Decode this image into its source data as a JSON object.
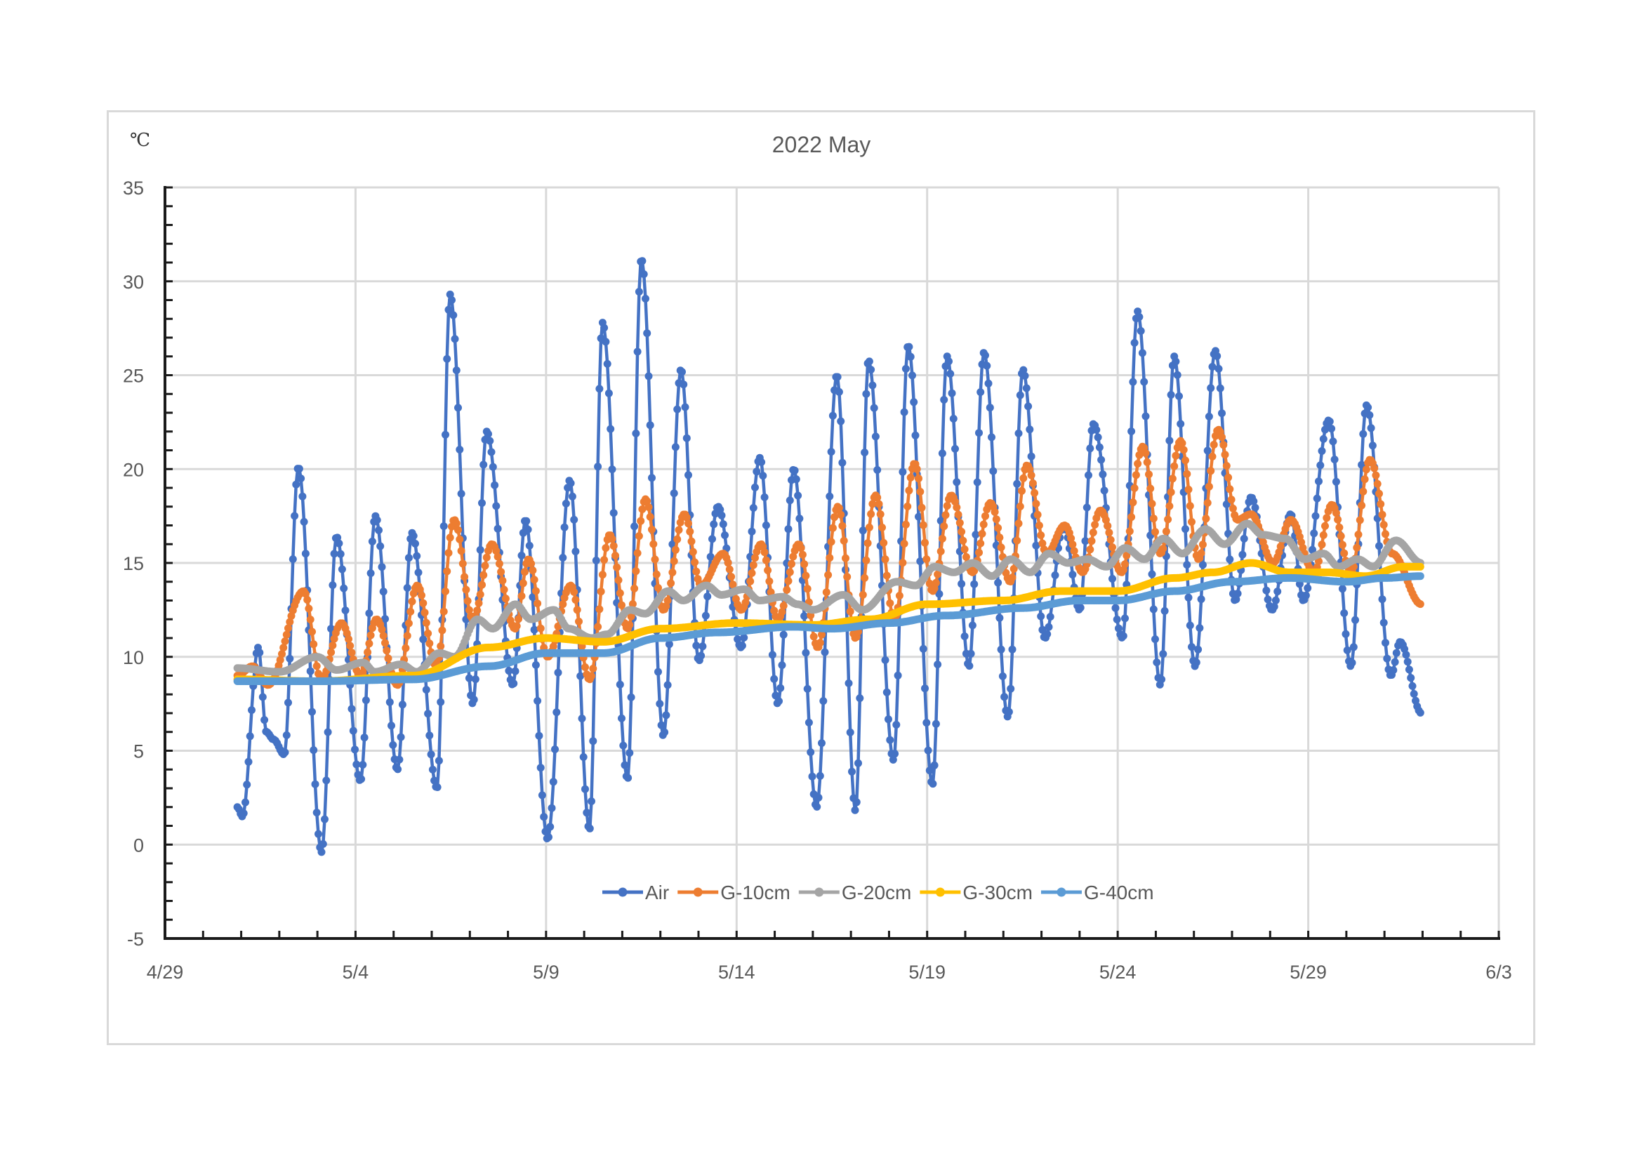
{
  "chart_data": {
    "type": "line",
    "title": "2022 May",
    "ylabel": "℃",
    "xlabel": "",
    "x_units": "days since 4/29",
    "xlim": [
      0,
      35
    ],
    "ylim": [
      -5,
      35
    ],
    "grid": true,
    "legend_position": "bottom-center inside",
    "x_tick_labels": [
      {
        "day": 0,
        "label": "4/29"
      },
      {
        "day": 5,
        "label": "5/4"
      },
      {
        "day": 10,
        "label": "5/9"
      },
      {
        "day": 15,
        "label": "5/14"
      },
      {
        "day": 20,
        "label": "5/19"
      },
      {
        "day": 25,
        "label": "5/24"
      },
      {
        "day": 30,
        "label": "5/29"
      },
      {
        "day": 35,
        "label": "6/3"
      }
    ],
    "y_tick_labels": [
      "35",
      "30",
      "25",
      "20",
      "15",
      "10",
      "5",
      "0",
      "-5"
    ],
    "y_ticks": [
      35,
      30,
      25,
      20,
      15,
      10,
      5,
      0,
      -5
    ],
    "sampling_hours": 1,
    "series": [
      {
        "name": "Air",
        "color": "#4472C4",
        "key_points": [
          [
            1.9,
            2.0
          ],
          [
            2.03,
            1.5
          ],
          [
            2.45,
            10.5
          ],
          [
            2.66,
            6.0
          ],
          [
            2.85,
            5.6
          ],
          [
            3.13,
            4.8
          ],
          [
            3.5,
            20.1
          ],
          [
            4.11,
            -0.4
          ],
          [
            4.5,
            16.4
          ],
          [
            5.13,
            3.4
          ],
          [
            5.52,
            17.5
          ],
          [
            6.1,
            4.0
          ],
          [
            6.48,
            16.6
          ],
          [
            7.14,
            3.0
          ],
          [
            7.48,
            29.3
          ],
          [
            8.08,
            7.5
          ],
          [
            8.44,
            22.0
          ],
          [
            9.13,
            8.5
          ],
          [
            9.46,
            17.3
          ],
          [
            10.04,
            0.3
          ],
          [
            10.62,
            19.4
          ],
          [
            11.14,
            0.8
          ],
          [
            11.48,
            27.8
          ],
          [
            12.14,
            3.5
          ],
          [
            12.5,
            31.2
          ],
          [
            13.08,
            5.8
          ],
          [
            13.54,
            25.3
          ],
          [
            14.01,
            9.8
          ],
          [
            14.51,
            18.0
          ],
          [
            15.12,
            10.5
          ],
          [
            15.61,
            20.6
          ],
          [
            16.08,
            7.5
          ],
          [
            16.5,
            20.0
          ],
          [
            17.1,
            2.0
          ],
          [
            17.63,
            25.0
          ],
          [
            18.12,
            1.8
          ],
          [
            18.46,
            25.8
          ],
          [
            19.12,
            4.5
          ],
          [
            19.5,
            26.6
          ],
          [
            20.14,
            3.2
          ],
          [
            20.52,
            26.0
          ],
          [
            21.1,
            9.5
          ],
          [
            21.49,
            26.2
          ],
          [
            22.12,
            6.8
          ],
          [
            22.51,
            25.3
          ],
          [
            23.09,
            11.0
          ],
          [
            23.59,
            17.0
          ],
          [
            24.0,
            12.5
          ],
          [
            24.36,
            22.4
          ],
          [
            25.13,
            11.0
          ],
          [
            25.52,
            28.4
          ],
          [
            26.12,
            8.5
          ],
          [
            26.48,
            26.0
          ],
          [
            27.03,
            9.5
          ],
          [
            27.56,
            26.3
          ],
          [
            28.08,
            13.0
          ],
          [
            28.5,
            18.5
          ],
          [
            29.05,
            12.5
          ],
          [
            29.54,
            17.6
          ],
          [
            29.87,
            13.0
          ],
          [
            30.54,
            22.6
          ],
          [
            31.12,
            9.5
          ],
          [
            31.53,
            23.4
          ],
          [
            32.17,
            9.0
          ],
          [
            32.41,
            10.8
          ],
          [
            32.97,
            7.0
          ]
        ]
      },
      {
        "name": "G-10cm",
        "color": "#ED7D31",
        "key_points": [
          [
            1.9,
            9.0
          ],
          [
            2.3,
            9.5
          ],
          [
            2.7,
            8.5
          ],
          [
            3.64,
            13.5
          ],
          [
            4.1,
            8.8
          ],
          [
            4.63,
            11.8
          ],
          [
            5.13,
            9.0
          ],
          [
            5.55,
            12.0
          ],
          [
            6.1,
            8.5
          ],
          [
            6.62,
            13.8
          ],
          [
            7.12,
            9.5
          ],
          [
            7.59,
            17.3
          ],
          [
            8.08,
            12.0
          ],
          [
            8.58,
            16.0
          ],
          [
            9.19,
            11.5
          ],
          [
            9.54,
            15.2
          ],
          [
            10.04,
            10.0
          ],
          [
            10.65,
            13.8
          ],
          [
            11.14,
            8.8
          ],
          [
            11.67,
            16.5
          ],
          [
            12.14,
            11.5
          ],
          [
            12.61,
            18.4
          ],
          [
            13.08,
            12.5
          ],
          [
            13.63,
            17.6
          ],
          [
            14.07,
            13.8
          ],
          [
            14.65,
            15.5
          ],
          [
            15.12,
            12.5
          ],
          [
            15.64,
            16.0
          ],
          [
            16.08,
            12.0
          ],
          [
            16.63,
            16.0
          ],
          [
            17.13,
            10.5
          ],
          [
            17.66,
            18.0
          ],
          [
            18.12,
            11.0
          ],
          [
            18.65,
            18.6
          ],
          [
            19.14,
            12.0
          ],
          [
            19.67,
            20.3
          ],
          [
            20.14,
            13.5
          ],
          [
            20.63,
            18.6
          ],
          [
            21.19,
            14.5
          ],
          [
            21.66,
            18.2
          ],
          [
            22.18,
            14.0
          ],
          [
            22.62,
            20.2
          ],
          [
            23.14,
            15.5
          ],
          [
            23.61,
            17.0
          ],
          [
            24.08,
            14.5
          ],
          [
            24.55,
            17.8
          ],
          [
            25.1,
            14.5
          ],
          [
            25.66,
            21.2
          ],
          [
            26.12,
            15.5
          ],
          [
            26.65,
            21.5
          ],
          [
            27.12,
            15.2
          ],
          [
            27.64,
            22.1
          ],
          [
            28.14,
            17.3
          ],
          [
            28.5,
            17.6
          ],
          [
            29.08,
            15.0
          ],
          [
            29.54,
            17.3
          ],
          [
            30.15,
            14.5
          ],
          [
            30.62,
            18.1
          ],
          [
            31.12,
            14.5
          ],
          [
            31.62,
            20.5
          ],
          [
            32.2,
            15.5
          ],
          [
            32.97,
            12.8
          ]
        ]
      },
      {
        "name": "G-20cm",
        "color": "#A5A5A5",
        "key_points": [
          [
            1.9,
            9.4
          ],
          [
            3.0,
            9.2
          ],
          [
            4.0,
            10.0
          ],
          [
            4.5,
            9.3
          ],
          [
            5.2,
            9.7
          ],
          [
            5.5,
            9.2
          ],
          [
            6.2,
            9.6
          ],
          [
            6.6,
            9.2
          ],
          [
            7.2,
            10.2
          ],
          [
            7.6,
            10.0
          ],
          [
            8.2,
            12.0
          ],
          [
            8.6,
            11.5
          ],
          [
            9.2,
            12.8
          ],
          [
            9.6,
            12.0
          ],
          [
            10.2,
            12.5
          ],
          [
            10.6,
            11.5
          ],
          [
            11.2,
            11.0
          ],
          [
            11.6,
            11.2
          ],
          [
            12.2,
            12.5
          ],
          [
            12.6,
            12.3
          ],
          [
            13.2,
            13.5
          ],
          [
            13.6,
            13.0
          ],
          [
            14.2,
            13.8
          ],
          [
            14.6,
            13.3
          ],
          [
            15.2,
            13.6
          ],
          [
            15.6,
            13.0
          ],
          [
            16.2,
            13.2
          ],
          [
            16.6,
            12.8
          ],
          [
            17.0,
            12.5
          ],
          [
            17.8,
            13.3
          ],
          [
            18.3,
            12.5
          ],
          [
            19.2,
            14.0
          ],
          [
            19.7,
            13.8
          ],
          [
            20.2,
            14.8
          ],
          [
            20.7,
            14.5
          ],
          [
            21.2,
            15.0
          ],
          [
            21.7,
            14.3
          ],
          [
            22.2,
            15.2
          ],
          [
            22.7,
            14.5
          ],
          [
            23.2,
            15.5
          ],
          [
            23.7,
            15.0
          ],
          [
            24.2,
            15.2
          ],
          [
            24.7,
            14.8
          ],
          [
            25.2,
            15.8
          ],
          [
            25.7,
            15.2
          ],
          [
            26.2,
            16.3
          ],
          [
            26.7,
            15.5
          ],
          [
            27.3,
            16.8
          ],
          [
            27.8,
            16.0
          ],
          [
            28.4,
            17.1
          ],
          [
            28.8,
            16.5
          ],
          [
            29.4,
            16.3
          ],
          [
            29.9,
            15.2
          ],
          [
            30.4,
            15.5
          ],
          [
            30.8,
            14.8
          ],
          [
            31.3,
            15.2
          ],
          [
            31.7,
            14.8
          ],
          [
            32.3,
            16.2
          ],
          [
            32.97,
            15.0
          ]
        ]
      },
      {
        "name": "G-30cm",
        "color": "#FFC000",
        "key_points": [
          [
            1.9,
            8.8
          ],
          [
            4.0,
            8.7
          ],
          [
            6.5,
            9.0
          ],
          [
            8.5,
            10.5
          ],
          [
            10.0,
            11.0
          ],
          [
            11.5,
            10.8
          ],
          [
            13.0,
            11.5
          ],
          [
            15.0,
            11.8
          ],
          [
            17.0,
            11.7
          ],
          [
            18.5,
            12.0
          ],
          [
            20.0,
            12.8
          ],
          [
            22.0,
            13.0
          ],
          [
            23.5,
            13.5
          ],
          [
            25.0,
            13.5
          ],
          [
            26.5,
            14.2
          ],
          [
            27.5,
            14.5
          ],
          [
            28.5,
            15.0
          ],
          [
            29.5,
            14.5
          ],
          [
            30.5,
            14.5
          ],
          [
            31.5,
            14.3
          ],
          [
            32.5,
            14.8
          ],
          [
            32.97,
            14.8
          ]
        ]
      },
      {
        "name": "G-40cm",
        "color": "#5B9BD5",
        "key_points": [
          [
            1.9,
            8.7
          ],
          [
            4.0,
            8.7
          ],
          [
            6.5,
            8.8
          ],
          [
            8.5,
            9.5
          ],
          [
            10.0,
            10.2
          ],
          [
            11.5,
            10.2
          ],
          [
            13.0,
            11.0
          ],
          [
            14.5,
            11.3
          ],
          [
            16.5,
            11.6
          ],
          [
            17.5,
            11.5
          ],
          [
            19.0,
            11.8
          ],
          [
            20.5,
            12.2
          ],
          [
            22.5,
            12.6
          ],
          [
            24.0,
            13.0
          ],
          [
            25.0,
            13.0
          ],
          [
            26.5,
            13.5
          ],
          [
            28.0,
            14.0
          ],
          [
            29.5,
            14.2
          ],
          [
            31.0,
            14.0
          ],
          [
            32.0,
            14.2
          ],
          [
            32.97,
            14.3
          ]
        ]
      }
    ]
  }
}
